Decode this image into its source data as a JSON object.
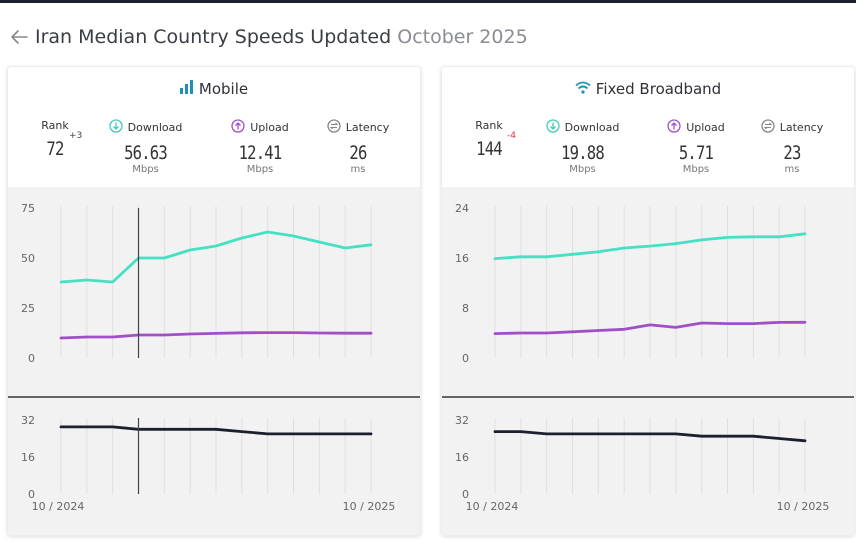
{
  "page": {
    "title_main": "Iran Median Country Speeds Updated",
    "title_date": "October 2025",
    "colors": {
      "download": "#46e0c4",
      "upload": "#a04fc9",
      "latency": "#1c1f2e",
      "icon_blue": "#1f8fb8"
    }
  },
  "mobile": {
    "title": "Mobile",
    "rank_label": "Rank",
    "rank": "72",
    "rank_change": "+3",
    "download_label": "Download",
    "download": "56.63",
    "download_unit": "Mbps",
    "upload_label": "Upload",
    "upload": "12.41",
    "upload_unit": "Mbps",
    "latency_label": "Latency",
    "latency": "26",
    "latency_unit": "ms",
    "cursor_index": 3
  },
  "fixed": {
    "title": "Fixed Broadband",
    "rank_label": "Rank",
    "rank": "144",
    "rank_change": "-4",
    "download_label": "Download",
    "download": "19.88",
    "download_unit": "Mbps",
    "upload_label": "Upload",
    "upload": "5.71",
    "upload_unit": "Mbps",
    "latency_label": "Latency",
    "latency": "23",
    "latency_unit": "ms"
  },
  "chart_data": [
    {
      "type": "line",
      "name": "mobile-speed",
      "x_start_label": "10 / 2024",
      "x_end_label": "10 / 2025",
      "ylim": [
        0,
        75
      ],
      "yticks": [
        0,
        25,
        50,
        75
      ],
      "series": [
        {
          "key": "download",
          "values": [
            38,
            39,
            38,
            50,
            50,
            54,
            56,
            60,
            63,
            61,
            58,
            55,
            56.6
          ]
        },
        {
          "key": "upload",
          "values": [
            10,
            10.5,
            10.5,
            11.5,
            11.5,
            12,
            12.3,
            12.6,
            12.7,
            12.7,
            12.5,
            12.4,
            12.41
          ]
        }
      ]
    },
    {
      "type": "line",
      "name": "mobile-latency",
      "ylim": [
        0,
        32
      ],
      "yticks": [
        0,
        16,
        32
      ],
      "series": [
        {
          "key": "latency",
          "values": [
            29,
            29,
            29,
            28,
            28,
            28,
            28,
            27,
            26,
            26,
            26,
            26,
            26
          ]
        }
      ]
    },
    {
      "type": "line",
      "name": "fixed-speed",
      "x_start_label": "10 / 2024",
      "x_end_label": "10 / 2025",
      "ylim": [
        0,
        24
      ],
      "yticks": [
        0,
        8,
        16,
        24
      ],
      "series": [
        {
          "key": "download",
          "values": [
            15.9,
            16.2,
            16.2,
            16.6,
            17,
            17.6,
            17.9,
            18.3,
            18.9,
            19.3,
            19.4,
            19.4,
            19.88
          ]
        },
        {
          "key": "upload",
          "values": [
            3.9,
            4,
            4,
            4.2,
            4.4,
            4.6,
            5.3,
            4.9,
            5.6,
            5.5,
            5.5,
            5.7,
            5.71
          ]
        }
      ]
    },
    {
      "type": "line",
      "name": "fixed-latency",
      "ylim": [
        0,
        32
      ],
      "yticks": [
        0,
        16,
        32
      ],
      "series": [
        {
          "key": "latency",
          "values": [
            27,
            27,
            26,
            26,
            26,
            26,
            26,
            26,
            25,
            25,
            25,
            24,
            23
          ]
        }
      ]
    }
  ]
}
